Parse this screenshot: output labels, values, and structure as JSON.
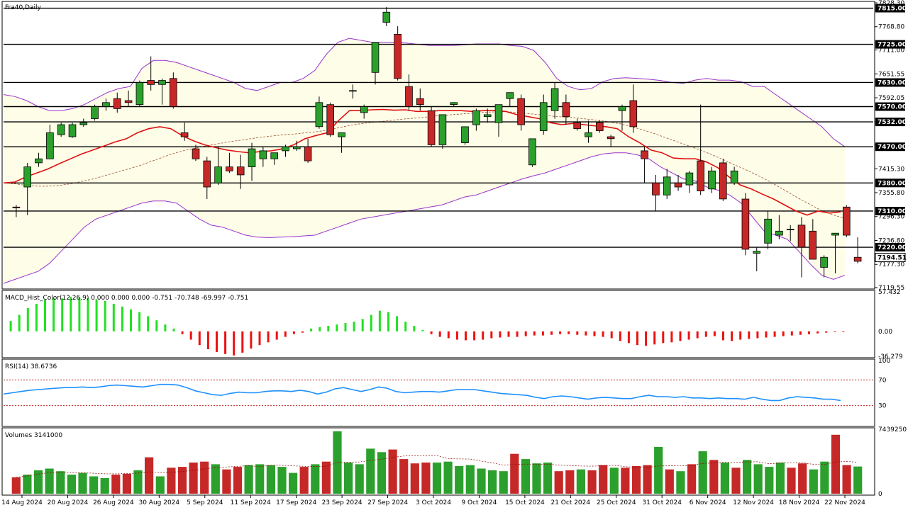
{
  "window": {
    "symbol_title": "Fra40,Daily",
    "macd_title": "MACD_Hist_Color(12,26,9) 0.000 0.000 0.000 -0.751 -70.748 -69.997 -0.751",
    "rsi_title": "RSI(14) 38.6736",
    "volume_title": "Volumes 3141000"
  },
  "colors": {
    "bull": "#2ca02c",
    "bear": "#c62828",
    "sma": "#e01010",
    "bollinger": "#9932cc",
    "band_fill": "#fdfde8",
    "rsi": "#1e90ff",
    "hline": "#000000",
    "macd_pos": "#22e022",
    "macd_neg": "#ee1111"
  },
  "chart_data": [
    {
      "type": "candlestick",
      "name": "price",
      "ylim": [
        7119.55,
        7828.3
      ],
      "y_tick_labels": [
        "7828.30",
        "7768.80",
        "7711.00",
        "7651.55",
        "7592.05",
        "7532.00",
        "7474.30",
        "7415.30",
        "7355.80",
        "7296.30",
        "7236.80",
        "7177.30",
        "7119.55"
      ],
      "x_tick_labels": [
        "14 Aug 2024",
        "20 Aug 2024",
        "26 Aug 2024",
        "30 Aug 2024",
        "5 Sep 2024",
        "11 Sep 2024",
        "17 Sep 2024",
        "23 Sep 2024",
        "27 Sep 2024",
        "3 Oct 2024",
        "9 Oct 2024",
        "15 Oct 2024",
        "21 Oct 2024",
        "25 Oct 2024",
        "31 Oct 2024",
        "6 Nov 2024",
        "12 Nov 2024",
        "18 Nov 2024",
        "22 Nov 2024"
      ],
      "horizontal_levels": [
        "7815.00",
        "7725.00",
        "7630.00",
        "7570.00",
        "7532.00",
        "7470.00",
        "7380.00",
        "7310.00",
        "7220.00"
      ],
      "last_price_label": "7194.51",
      "ohlc": [
        {
          "o": 7320,
          "h": 7325,
          "l": 7295,
          "c": 7318
        },
        {
          "o": 7370,
          "h": 7430,
          "l": 7300,
          "c": 7420
        },
        {
          "o": 7430,
          "h": 7455,
          "l": 7420,
          "c": 7440
        },
        {
          "o": 7440,
          "h": 7525,
          "l": 7440,
          "c": 7505
        },
        {
          "o": 7500,
          "h": 7530,
          "l": 7495,
          "c": 7525
        },
        {
          "o": 7495,
          "h": 7530,
          "l": 7492,
          "c": 7525
        },
        {
          "o": 7525,
          "h": 7540,
          "l": 7520,
          "c": 7530
        },
        {
          "o": 7540,
          "h": 7575,
          "l": 7535,
          "c": 7570
        },
        {
          "o": 7570,
          "h": 7590,
          "l": 7560,
          "c": 7580
        },
        {
          "o": 7590,
          "h": 7605,
          "l": 7555,
          "c": 7565
        },
        {
          "o": 7585,
          "h": 7610,
          "l": 7570,
          "c": 7580
        },
        {
          "o": 7575,
          "h": 7635,
          "l": 7570,
          "c": 7630
        },
        {
          "o": 7635,
          "h": 7695,
          "l": 7610,
          "c": 7625
        },
        {
          "o": 7625,
          "h": 7640,
          "l": 7575,
          "c": 7635
        },
        {
          "o": 7640,
          "h": 7655,
          "l": 7565,
          "c": 7570
        },
        {
          "o": 7505,
          "h": 7530,
          "l": 7485,
          "c": 7495
        },
        {
          "o": 7465,
          "h": 7475,
          "l": 7435,
          "c": 7440
        },
        {
          "o": 7435,
          "h": 7445,
          "l": 7340,
          "c": 7370
        },
        {
          "o": 7380,
          "h": 7470,
          "l": 7375,
          "c": 7420
        },
        {
          "o": 7420,
          "h": 7455,
          "l": 7405,
          "c": 7410
        },
        {
          "o": 7420,
          "h": 7450,
          "l": 7365,
          "c": 7400
        },
        {
          "o": 7420,
          "h": 7480,
          "l": 7385,
          "c": 7465
        },
        {
          "o": 7440,
          "h": 7470,
          "l": 7420,
          "c": 7460
        },
        {
          "o": 7440,
          "h": 7455,
          "l": 7425,
          "c": 7455
        },
        {
          "o": 7460,
          "h": 7475,
          "l": 7445,
          "c": 7470
        },
        {
          "o": 7465,
          "h": 7485,
          "l": 7460,
          "c": 7470
        },
        {
          "o": 7470,
          "h": 7490,
          "l": 7430,
          "c": 7435
        },
        {
          "o": 7520,
          "h": 7595,
          "l": 7515,
          "c": 7580
        },
        {
          "o": 7575,
          "h": 7580,
          "l": 7495,
          "c": 7500
        },
        {
          "o": 7495,
          "h": 7505,
          "l": 7455,
          "c": 7505
        },
        {
          "o": 7610,
          "h": 7625,
          "l": 7590,
          "c": 7610
        },
        {
          "o": 7555,
          "h": 7575,
          "l": 7540,
          "c": 7570
        },
        {
          "o": 7655,
          "h": 7725,
          "l": 7625,
          "c": 7730
        },
        {
          "o": 7780,
          "h": 7818,
          "l": 7770,
          "c": 7805
        },
        {
          "o": 7750,
          "h": 7770,
          "l": 7635,
          "c": 7640
        },
        {
          "o": 7620,
          "h": 7650,
          "l": 7560,
          "c": 7570
        },
        {
          "o": 7590,
          "h": 7615,
          "l": 7560,
          "c": 7575
        },
        {
          "o": 7560,
          "h": 7570,
          "l": 7470,
          "c": 7475
        },
        {
          "o": 7475,
          "h": 7545,
          "l": 7465,
          "c": 7550
        },
        {
          "o": 7575,
          "h": 7580,
          "l": 7570,
          "c": 7580
        },
        {
          "o": 7480,
          "h": 7515,
          "l": 7475,
          "c": 7520
        },
        {
          "o": 7525,
          "h": 7565,
          "l": 7510,
          "c": 7560
        },
        {
          "o": 7545,
          "h": 7565,
          "l": 7530,
          "c": 7550
        },
        {
          "o": 7530,
          "h": 7575,
          "l": 7495,
          "c": 7575
        },
        {
          "o": 7590,
          "h": 7605,
          "l": 7570,
          "c": 7605
        },
        {
          "o": 7590,
          "h": 7600,
          "l": 7510,
          "c": 7525
        },
        {
          "o": 7425,
          "h": 7490,
          "l": 7420,
          "c": 7490
        },
        {
          "o": 7510,
          "h": 7600,
          "l": 7500,
          "c": 7580
        },
        {
          "o": 7560,
          "h": 7630,
          "l": 7540,
          "c": 7615
        },
        {
          "o": 7580,
          "h": 7600,
          "l": 7525,
          "c": 7545
        },
        {
          "o": 7530,
          "h": 7540,
          "l": 7510,
          "c": 7515
        },
        {
          "o": 7495,
          "h": 7535,
          "l": 7480,
          "c": 7505
        },
        {
          "o": 7530,
          "h": 7535,
          "l": 7505,
          "c": 7510
        },
        {
          "o": 7495,
          "h": 7500,
          "l": 7470,
          "c": 7490
        },
        {
          "o": 7560,
          "h": 7575,
          "l": 7510,
          "c": 7570
        },
        {
          "o": 7585,
          "h": 7625,
          "l": 7505,
          "c": 7520
        },
        {
          "o": 7460,
          "h": 7470,
          "l": 7380,
          "c": 7440
        },
        {
          "o": 7380,
          "h": 7400,
          "l": 7310,
          "c": 7350
        },
        {
          "o": 7350,
          "h": 7415,
          "l": 7340,
          "c": 7395
        },
        {
          "o": 7380,
          "h": 7400,
          "l": 7360,
          "c": 7370
        },
        {
          "o": 7375,
          "h": 7410,
          "l": 7355,
          "c": 7405
        },
        {
          "o": 7435,
          "h": 7575,
          "l": 7350,
          "c": 7360
        },
        {
          "o": 7365,
          "h": 7420,
          "l": 7355,
          "c": 7410
        },
        {
          "o": 7430,
          "h": 7440,
          "l": 7335,
          "c": 7340
        },
        {
          "o": 7380,
          "h": 7420,
          "l": 7375,
          "c": 7410
        },
        {
          "o": 7340,
          "h": 7355,
          "l": 7200,
          "c": 7215
        },
        {
          "o": 7205,
          "h": 7220,
          "l": 7160,
          "c": 7210
        },
        {
          "o": 7230,
          "h": 7310,
          "l": 7215,
          "c": 7290
        },
        {
          "o": 7250,
          "h": 7300,
          "l": 7240,
          "c": 7260
        },
        {
          "o": 7265,
          "h": 7275,
          "l": 7235,
          "c": 7265
        },
        {
          "o": 7275,
          "h": 7295,
          "l": 7145,
          "c": 7220
        },
        {
          "o": 7260,
          "h": 7290,
          "l": 7195,
          "c": 7190
        },
        {
          "o": 7170,
          "h": 7200,
          "l": 7145,
          "c": 7195
        },
        {
          "o": 7250,
          "h": 7255,
          "l": 7155,
          "c": 7255
        },
        {
          "o": 7320,
          "h": 7325,
          "l": 7245,
          "c": 7250
        },
        {
          "o": 7195,
          "h": 7245,
          "l": 7180,
          "c": 7185
        }
      ],
      "sma20": [
        7380,
        7382,
        7395,
        7405,
        7415,
        7428,
        7440,
        7452,
        7462,
        7472,
        7482,
        7490,
        7505,
        7515,
        7520,
        7515,
        7498,
        7485,
        7475,
        7468,
        7462,
        7458,
        7455,
        7458,
        7460,
        7465,
        7475,
        7490,
        7498,
        7505,
        7535,
        7560,
        7560,
        7562,
        7563,
        7561,
        7562,
        7558,
        7558,
        7560,
        7560,
        7560,
        7558,
        7560,
        7560,
        7558,
        7550,
        7545,
        7540,
        7530,
        7525,
        7528,
        7525,
        7522,
        7520,
        7515,
        7495,
        7480,
        7462,
        7455,
        7442,
        7440,
        7440,
        7432,
        7418,
        7395,
        7375,
        7365,
        7352,
        7340,
        7325,
        7310,
        7300,
        7310,
        7305,
        7308
      ],
      "sma50": [
        7380,
        7378,
        7374,
        7372,
        7372,
        7374,
        7378,
        7384,
        7390,
        7398,
        7406,
        7414,
        7422,
        7432,
        7442,
        7452,
        7460,
        7466,
        7472,
        7477,
        7482,
        7486,
        7490,
        7494,
        7497,
        7500,
        7502,
        7505,
        7508,
        7512,
        7518,
        7524,
        7528,
        7531,
        7534,
        7537,
        7540,
        7542,
        7545,
        7548,
        7550,
        7552,
        7554,
        7556,
        7557,
        7557,
        7555,
        7552,
        7549,
        7546,
        7544,
        7542,
        7539,
        7536,
        7532,
        7527,
        7520,
        7512,
        7503,
        7493,
        7483,
        7473,
        7463,
        7452,
        7440,
        7427,
        7415,
        7402,
        7388,
        7372,
        7356,
        7340,
        7325,
        7310,
        7300,
        7292
      ],
      "bb_upper": [
        7600,
        7595,
        7585,
        7570,
        7560,
        7560,
        7565,
        7575,
        7590,
        7605,
        7615,
        7620,
        7665,
        7685,
        7685,
        7680,
        7670,
        7660,
        7650,
        7640,
        7630,
        7615,
        7610,
        7620,
        7630,
        7630,
        7640,
        7660,
        7700,
        7730,
        7740,
        7735,
        7730,
        7730,
        7730,
        7728,
        7725,
        7722,
        7722,
        7722,
        7724,
        7726,
        7726,
        7726,
        7722,
        7720,
        7710,
        7680,
        7640,
        7620,
        7612,
        7615,
        7632,
        7640,
        7642,
        7640,
        7638,
        7635,
        7630,
        7628,
        7636,
        7640,
        7636,
        7636,
        7632,
        7620,
        7620,
        7600,
        7580,
        7560,
        7540,
        7520,
        7490,
        7470
      ],
      "bb_lower": [
        7130,
        7140,
        7150,
        7160,
        7180,
        7210,
        7240,
        7270,
        7290,
        7300,
        7310,
        7320,
        7330,
        7335,
        7335,
        7330,
        7310,
        7290,
        7275,
        7270,
        7260,
        7250,
        7245,
        7244,
        7245,
        7246,
        7248,
        7250,
        7260,
        7270,
        7280,
        7290,
        7295,
        7300,
        7305,
        7310,
        7315,
        7320,
        7325,
        7335,
        7345,
        7350,
        7360,
        7370,
        7380,
        7390,
        7398,
        7405,
        7415,
        7425,
        7435,
        7445,
        7452,
        7455,
        7455,
        7450,
        7440,
        7420,
        7405,
        7390,
        7385,
        7370,
        7362,
        7350,
        7330,
        7295,
        7260,
        7250,
        7240,
        7210,
        7178,
        7150,
        7140,
        7150,
        7145,
        7140
      ]
    },
    {
      "type": "bar",
      "name": "macd_histogram",
      "ylim": [
        -36.279,
        57.432
      ],
      "y_tick_labels": [
        "57.432",
        "0.00",
        "-36.279"
      ],
      "values": [
        15,
        24,
        34,
        40,
        46,
        48,
        48,
        50,
        49,
        48,
        46,
        44,
        40,
        36,
        32,
        28,
        22,
        16,
        10,
        4,
        -4,
        -12,
        -20,
        -26,
        -30,
        -33,
        -35,
        -31,
        -25,
        -20,
        -16,
        -12,
        -8,
        -4,
        -2,
        4,
        6,
        8,
        10,
        12,
        14,
        18,
        24,
        30,
        28,
        22,
        14,
        8,
        2,
        -4,
        -8,
        -10,
        -12,
        -13,
        -13,
        -12,
        -10,
        -9,
        -8,
        -8,
        -7,
        -6,
        -6,
        -5,
        -4,
        -4,
        -5,
        -6,
        -7,
        -8,
        -10,
        -14,
        -17,
        -20,
        -21,
        -19,
        -17,
        -16,
        -14,
        -12,
        -10,
        -8,
        -7,
        -13,
        -14,
        -12,
        -11,
        -10,
        -9,
        -8,
        -7,
        -6,
        -5,
        -4,
        -3,
        -2,
        -1,
        -1
      ]
    },
    {
      "type": "line",
      "name": "rsi",
      "ylim": [
        0,
        100
      ],
      "y_tick_labels": [
        "100",
        "70",
        "30"
      ],
      "levels": [
        70,
        30
      ],
      "values": [
        48,
        50,
        52,
        54,
        55,
        56,
        57,
        58,
        58,
        59,
        58,
        59,
        61,
        62,
        61,
        60,
        59,
        61,
        63,
        63,
        62,
        58,
        53,
        50,
        47,
        46,
        49,
        51,
        50,
        50,
        52,
        53,
        53,
        52,
        54,
        52,
        48,
        51,
        56,
        58,
        55,
        52,
        55,
        59,
        57,
        52,
        50,
        51,
        52,
        52,
        51,
        53,
        55,
        55,
        55,
        53,
        51,
        49,
        48,
        47,
        46,
        43,
        41,
        44,
        45,
        44,
        42,
        40,
        42,
        43,
        42,
        41,
        41,
        44,
        46,
        44,
        44,
        43,
        44,
        42,
        42,
        41,
        42,
        41,
        41,
        40,
        43,
        40,
        38,
        38,
        42,
        44,
        43,
        42,
        40,
        40,
        38
      ]
    },
    {
      "type": "bar",
      "name": "volume",
      "ylim": [
        0,
        7439250
      ],
      "y_tick_labels": [
        "7439250",
        "0"
      ],
      "values": [
        1900000,
        2200000,
        2700000,
        2900000,
        2600000,
        2200000,
        2400000,
        2000000,
        1800000,
        2200000,
        2300000,
        2700000,
        4200000,
        2000000,
        3000000,
        3100000,
        3600000,
        3700000,
        3400000,
        2800000,
        3100000,
        3300000,
        3400000,
        3300000,
        3100000,
        2400000,
        3100000,
        3400000,
        3700000,
        7200000,
        3600000,
        3400000,
        5200000,
        4800000,
        5100000,
        4000000,
        3500000,
        3600000,
        3600000,
        3700000,
        3200000,
        3300000,
        2900000,
        2700000,
        2600000,
        4600000,
        4000000,
        3500000,
        3600000,
        2600000,
        2700000,
        2800000,
        2700000,
        3300000,
        3000000,
        3000000,
        3200000,
        3300000,
        5400000,
        2800000,
        2600000,
        3400000,
        4900000,
        3900000,
        3600000,
        3000000,
        3900000,
        3400000,
        3100000,
        3600000,
        3000000,
        3500000,
        2800000,
        3700000,
        6800000,
        3300000,
        3141000
      ]
    }
  ]
}
